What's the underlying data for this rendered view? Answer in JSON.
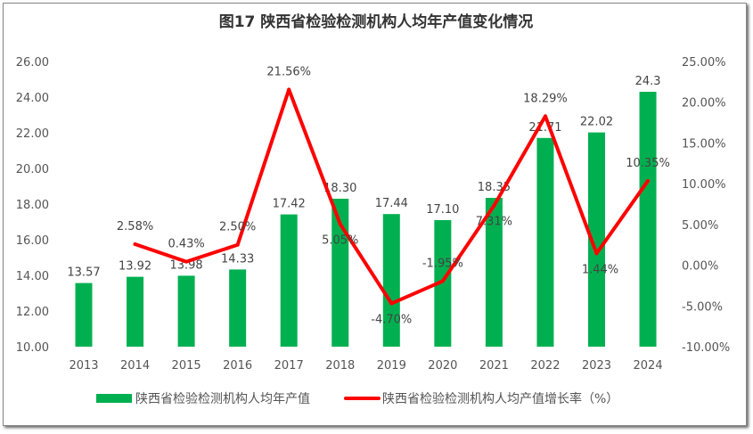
{
  "chart_data": {
    "type": "bar+line",
    "title": "图17  陕西省检验检测机构人均年产值变化情况",
    "categories": [
      "2013",
      "2014",
      "2015",
      "2016",
      "2017",
      "2018",
      "2019",
      "2020",
      "2021",
      "2022",
      "2023",
      "2024"
    ],
    "series": [
      {
        "name": "陕西省检验检测机构人均年产值",
        "type": "bar",
        "axis": "left",
        "color": "#00b050",
        "values": [
          13.57,
          13.92,
          13.98,
          14.33,
          17.42,
          18.3,
          17.44,
          17.1,
          18.35,
          21.71,
          22.02,
          24.3
        ],
        "labels": [
          "13.57",
          "13.92",
          "13.98",
          "14.33",
          "17.42",
          "18.30",
          "17.44",
          "17.10",
          "18.35",
          "21.71",
          "22.02",
          "24.3"
        ]
      },
      {
        "name": "陕西省检验检测机构人均产值增长率（%）",
        "type": "line",
        "axis": "right",
        "color": "#ff0000",
        "values": [
          null,
          2.58,
          0.43,
          2.5,
          21.56,
          5.05,
          -4.7,
          -1.95,
          7.31,
          18.29,
          1.44,
          10.35
        ],
        "labels": [
          "",
          "2.58%",
          "0.43%",
          "2.50%",
          "21.56%",
          "5.05%",
          "-4.70%",
          "-1.95%",
          "7.31%",
          "18.29%",
          "1.44%",
          "10.35%"
        ]
      }
    ],
    "y_left": {
      "range": [
        10,
        26
      ],
      "ticks": [
        "10.00",
        "12.00",
        "14.00",
        "16.00",
        "18.00",
        "20.00",
        "22.00",
        "24.00",
        "26.00"
      ]
    },
    "y_right": {
      "range": [
        -10,
        25
      ],
      "ticks": [
        "-10.00%",
        "-5.00%",
        "0.00%",
        "5.00%",
        "10.00%",
        "15.00%",
        "20.00%",
        "25.00%"
      ]
    },
    "grid": false,
    "legend": "bottom"
  }
}
